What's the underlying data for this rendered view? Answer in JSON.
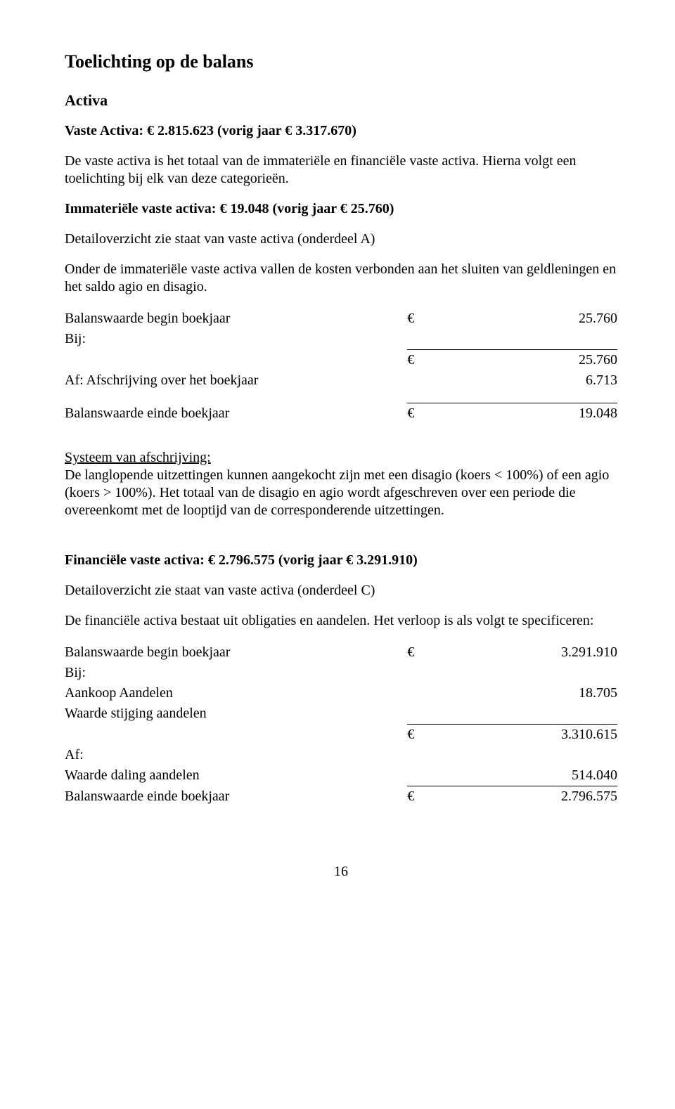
{
  "title": "Toelichting op de balans",
  "activa": "Activa",
  "vasteActiva": "Vaste Activa:  € 2.815.623 (vorig jaar € 3.317.670)",
  "p1": "De vaste activa is het totaal van de immateriële en financiële vaste activa. Hierna volgt een toelichting bij elk van deze categorieën.",
  "immat": "Immateriële vaste activa: € 19.048 (vorig jaar € 25.760)",
  "p2": "Detailoverzicht zie staat van vaste activa (onderdeel A)",
  "p3": "Onder de immateriële vaste activa vallen de kosten verbonden aan het sluiten van geldleningen en het saldo agio en disagio.",
  "t1": {
    "r1_label": "Balanswaarde begin boekjaar",
    "r1_cur": "€",
    "r1_val": "25.760",
    "r2_label": "Bij:",
    "r3_cur": "€",
    "r3_val": "25.760",
    "r4_label": "Af: Afschrijving over het boekjaar",
    "r4_val": "6.713",
    "r5_label": "Balanswaarde einde boekjaar",
    "r5_cur": "€",
    "r5_val": "19.048"
  },
  "sys_head": "Systeem van afschrijving:",
  "sys_body": "De langlopende uitzettingen kunnen aangekocht zijn met een disagio (koers < 100%) of een agio (koers > 100%). Het totaal van de disagio en agio wordt afgeschreven over een periode die overeenkomt met de looptijd van de corresponderende uitzettingen.",
  "fin": "Financiële vaste activa: € 2.796.575 (vorig jaar € 3.291.910)",
  "p4": "Detailoverzicht zie staat van vaste activa (onderdeel C)",
  "p5": "De financiële activa bestaat uit obligaties en aandelen. Het verloop is als volgt te specificeren:",
  "t2": {
    "r1_label": "Balanswaarde begin boekjaar",
    "r1_cur": "€",
    "r1_val": "3.291.910",
    "r2_label": "Bij:",
    "r3_label": "Aankoop Aandelen",
    "r3_val": "18.705",
    "r4_label": "Waarde stijging aandelen",
    "r5_cur": "€",
    "r5_val": "3.310.615",
    "r6_label": "Af:",
    "r7_label": "Waarde daling aandelen",
    "r7_val": "514.040",
    "r8_label": "Balanswaarde einde boekjaar",
    "r8_cur": "€",
    "r8_val": "2.796.575"
  },
  "pagenum": "16"
}
